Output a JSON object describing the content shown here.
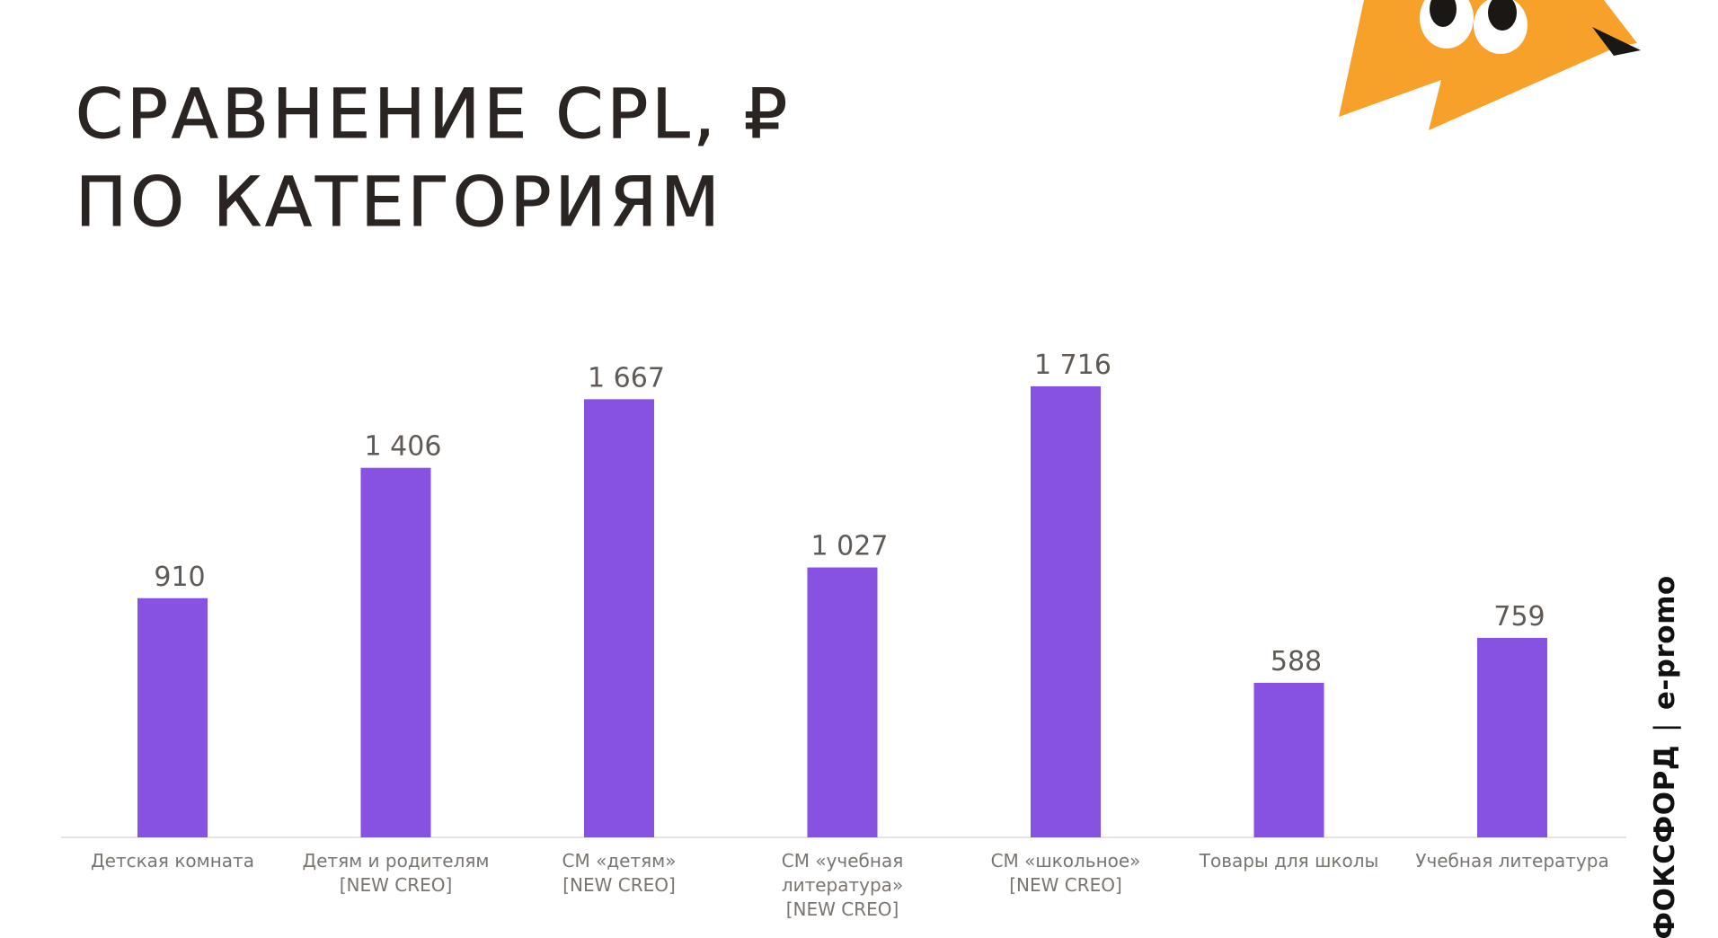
{
  "slide": {
    "title_line1": "Сравнение CPL, ₽",
    "title_line2": "по категориям"
  },
  "brand": {
    "logo_left": "ФОКСФОРД",
    "separator": "|",
    "logo_right": "e-promo"
  },
  "colors": {
    "bar": "#8752e1",
    "value_label": "#5f5a56",
    "category_label": "#7a7570",
    "axis": "#e6e3e0",
    "mascot_orange": "#f7a12b"
  },
  "chart_data": {
    "type": "bar",
    "categories": [
      [
        "Детская комната"
      ],
      [
        "Детям и родителям",
        "[NEW CREO]"
      ],
      [
        "СМ «детям»",
        "[NEW CREO]"
      ],
      [
        "СМ «учебная",
        "литература»",
        "[NEW CREO]"
      ],
      [
        "СМ «школьное»",
        "[NEW CREO]"
      ],
      [
        "Товары для школы"
      ],
      [
        "Учебная литература"
      ]
    ],
    "values": [
      910,
      1406,
      1667,
      1027,
      1716,
      588,
      759
    ],
    "value_labels": [
      "910",
      "1 406",
      "1 667",
      "1 027",
      "1 716",
      "588",
      "759"
    ],
    "title": "Сравнение CPL, ₽ по категориям",
    "xlabel": "",
    "ylabel": "",
    "ylim": [
      0,
      1716
    ],
    "grid": false,
    "legend": "none"
  }
}
